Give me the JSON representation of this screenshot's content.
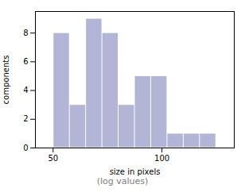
{
  "chart_data": {
    "type": "histogram",
    "xlabel": "size in pixels",
    "ylabel": "components",
    "annotations": [
      "(log values)"
    ],
    "bins": [
      50.119,
      55.59,
      61.66,
      68.391,
      75.858,
      84.14,
      93.325,
      103.514,
      114.815,
      127.35,
      141.254
    ],
    "values": [
      8,
      3,
      9,
      8,
      3,
      5,
      5,
      1,
      1,
      1
    ],
    "color": "#b3b5d6",
    "log": "x",
    "xlim": [
      44.668,
      158.489
    ],
    "xticks": [
      50,
      100
    ],
    "ylim": [
      0,
      9.5
    ],
    "yticks": [
      0,
      2,
      4,
      6,
      8
    ],
    "grid": false
  }
}
